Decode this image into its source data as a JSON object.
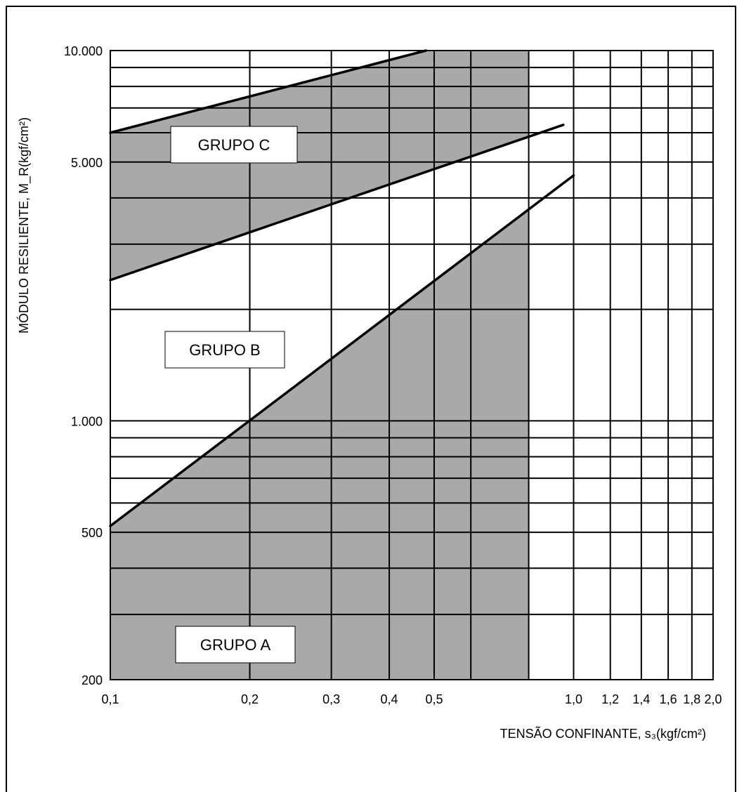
{
  "chart_data": {
    "type": "line",
    "xscale": "log",
    "yscale": "log",
    "xlim": [
      0.1,
      2.0
    ],
    "ylim": [
      200,
      10000
    ],
    "xlabel": "TENSÃO CONFINANTE, s₃(kgf/cm²)",
    "ylabel": "MÓDULO RESILIENTE, M_R(kgf/cm²)",
    "xticks": [
      0.1,
      0.2,
      0.3,
      0.4,
      0.5,
      1.0,
      1.2,
      1.4,
      1.6,
      1.8,
      2.0
    ],
    "xtick_labels": [
      "0,1",
      "0,2",
      "0,3",
      "0,4",
      "0,5",
      "1,0",
      "1,2",
      "1,4",
      "1,6",
      "1,8",
      "2,0"
    ],
    "yticks": [
      200,
      500,
      1000,
      5000,
      10000
    ],
    "ytick_labels": [
      "200",
      "500",
      "1.000",
      "5.000",
      "10.000"
    ],
    "grid": true,
    "series": [
      {
        "x": [
          0.1,
          0.48
        ],
        "y": [
          6000,
          10000
        ]
      },
      {
        "x": [
          0.1,
          0.95
        ],
        "y": [
          2400,
          6300
        ]
      },
      {
        "x": [
          0.1,
          1.0
        ],
        "y": [
          520,
          4600
        ]
      }
    ],
    "shaded_region": {
      "x_max": 0.8,
      "color": "#a9a9a9"
    },
    "annotations": [
      "GRUPO C",
      "GRUPO B",
      "GRUPO A"
    ]
  }
}
